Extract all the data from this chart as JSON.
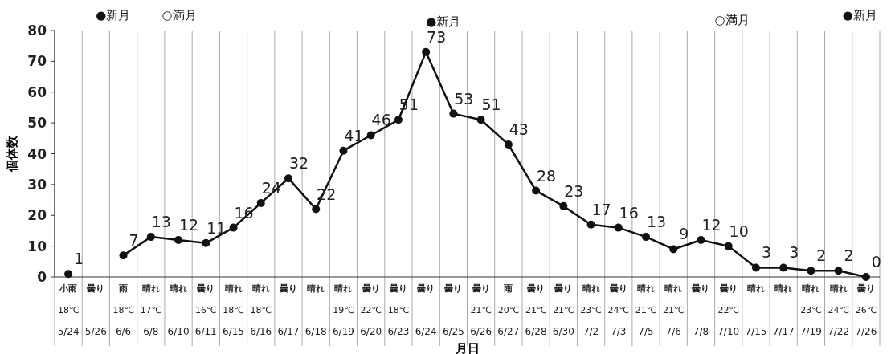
{
  "chart_data": {
    "type": "line",
    "ylabel": "個体数",
    "xlabel": "月日",
    "categories": [
      "小雨\n18℃\n5/24",
      "曇り\n\n5/26",
      "雨\n18℃\n6/6",
      "晴れ\n17℃\n6/8",
      "晴れ\n\n6/10",
      "曇り\n16℃\n6/11",
      "晴れ\n18℃\n6/15",
      "晴れ\n18℃\n6/16",
      "曇り\n\n6/17",
      "晴れ\n\n6/18",
      "晴れ\n19℃\n6/19",
      "曇り\n22℃\n6/20",
      "曇り\n18℃\n6/23",
      "曇り\n\n6/24",
      "曇り\n\n6/25",
      "曇り\n21℃\n6/26",
      "雨\n20℃\n6/27",
      "曇り\n21℃\n6/28",
      "曇り\n21℃\n6/30",
      "晴れ\n23℃\n7/2",
      "曇り\n24℃\n7/3",
      "晴れ\n21℃\n7/5",
      "晴れ\n21℃\n7/6",
      "曇り\n\n7/8",
      "曇り\n22℃\n7/10",
      "晴れ\n\n7/15",
      "晴れ\n\n7/17",
      "晴れ\n23℃\n7/19",
      "晴れ\n24℃\n7/22",
      "曇り\n26℃\n7/26"
    ],
    "series": [
      {
        "color": "#111111",
        "values": [
          null,
          null,
          7,
          13,
          12,
          11,
          16,
          24,
          32,
          22,
          41,
          46,
          51,
          73,
          53,
          51,
          43,
          28,
          23,
          17,
          16,
          13,
          9,
          12,
          10,
          3,
          3,
          2,
          2,
          0
        ]
      },
      {
        "type": "scatter",
        "color": "#111111",
        "values": [
          1,
          null,
          null,
          null,
          null,
          null,
          null,
          null,
          null,
          null,
          null,
          null,
          null,
          null,
          null,
          null,
          null,
          null,
          null,
          null,
          null,
          null,
          null,
          null,
          null,
          null,
          null,
          null,
          null,
          null
        ]
      }
    ],
    "ylim": [
      0,
      80
    ],
    "yticks": [
      0,
      10,
      20,
      30,
      40,
      50,
      60,
      70,
      80
    ],
    "grid": "x",
    "marker": "circle",
    "line_style": "solid",
    "data_labels": true,
    "annotations": [
      "●新月",
      "○満月",
      "●新月",
      "○満月",
      "●新月"
    ]
  }
}
